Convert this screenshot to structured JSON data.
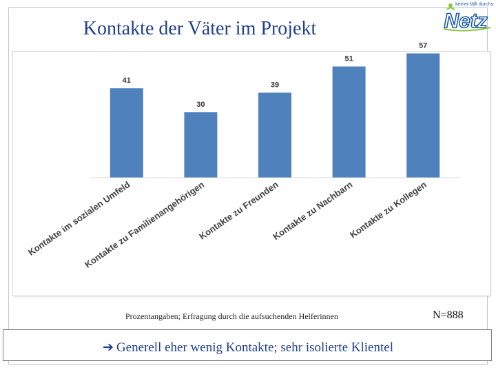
{
  "slide": {
    "title": "Kontakte der Väter im Projekt",
    "logo_tagline": "keiner fällt durchs",
    "logo_word": "Netz",
    "note": "Prozentangaben; Erfragung durch die aufsuchenden Helferinnen",
    "sample_size": "N=888",
    "conclusion_arrow": "➔",
    "conclusion": "Generell eher wenig Kontakte; sehr  isolierte Klientel"
  },
  "chart_data": {
    "type": "bar",
    "title": "",
    "xlabel": "",
    "ylabel": "",
    "ylim": [
      0,
      60
    ],
    "categories": [
      "Kontakte im sozialen Umfeld",
      "Kontakte zu Familienangehörigen",
      "Kontakte zu Freunden",
      "Kontakte zu Nachbarn",
      "Kontakte zu Kollegen"
    ],
    "values": [
      41,
      30,
      39,
      51,
      57
    ],
    "data_labels": [
      "41",
      "30",
      "39",
      "51",
      "57"
    ],
    "bar_color": "#4f81bd"
  },
  "colors": {
    "title": "#1f3f8f",
    "logo_green": "#8cc63f",
    "logo_blue": "#1c5aa8"
  }
}
